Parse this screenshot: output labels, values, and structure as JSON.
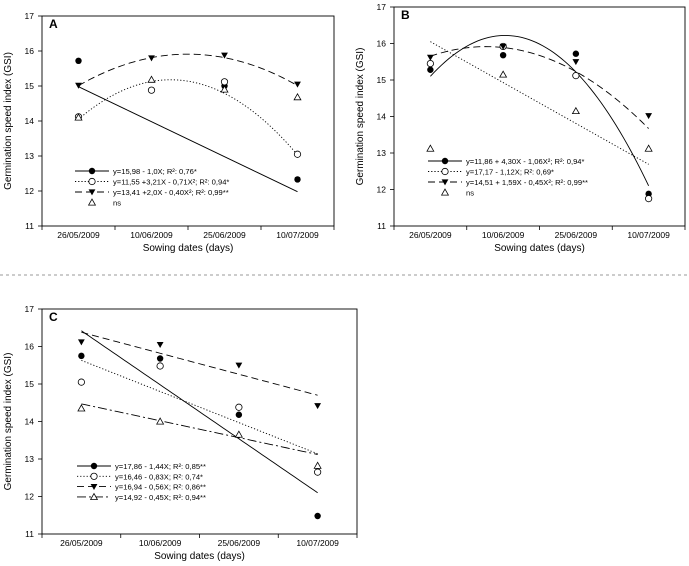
{
  "chart_data": [
    {
      "panel": "A",
      "type": "scatter",
      "ylabel": "Germination speed index (GSI)",
      "xlabel": "Sowing dates (days)",
      "categories": [
        "26/05/2009",
        "10/06/2009",
        "25/06/2009",
        "10/07/2009"
      ],
      "ylim": [
        11,
        17
      ],
      "yticks": [
        11,
        12,
        13,
        14,
        15,
        16,
        17
      ],
      "legend_position": "bottom-left",
      "series": [
        {
          "marker": "filled-circle",
          "dash": "solid",
          "values": [
            15.72,
            14.88,
            15.0,
            12.33
          ],
          "fit": [
            15.98,
            -1.0,
            0
          ],
          "legend": "y=15,98 - 1,0X; R²: 0,76*"
        },
        {
          "marker": "open-circle",
          "dash": "dotted",
          "values": [
            14.12,
            14.88,
            15.12,
            13.05
          ],
          "fit": [
            11.55,
            3.21,
            -0.71
          ],
          "legend": "y=11,55 +3,21X - 0,71X²; R²: 0,94*"
        },
        {
          "marker": "filled-triangle-down",
          "dash": "dashed",
          "values": [
            15.02,
            15.8,
            15.88,
            15.05
          ],
          "fit": [
            13.41,
            2.0,
            -0.4
          ],
          "legend": "y=13,41 +2,0X - 0,40X²; R²: 0,99**"
        },
        {
          "marker": "open-triangle-up",
          "dash": "none",
          "values": [
            14.1,
            15.18,
            14.9,
            14.68
          ],
          "fit": null,
          "legend": "ns"
        }
      ]
    },
    {
      "panel": "B",
      "type": "scatter",
      "ylabel": "Germination speed index (GSI)",
      "xlabel": "Sowing dates (days)",
      "categories": [
        "26/05/2009",
        "10/06/2009",
        "25/06/2009",
        "10/07/2009"
      ],
      "ylim": [
        11,
        17
      ],
      "yticks": [
        11,
        12,
        13,
        14,
        15,
        16,
        17
      ],
      "legend_position": "bottom-left",
      "series": [
        {
          "marker": "filled-circle",
          "dash": "solid",
          "values": [
            15.28,
            15.68,
            15.72,
            11.88
          ],
          "fit": [
            11.86,
            4.3,
            -1.06
          ],
          "legend": "y=11,86 + 4,30X - 1,06X²; R²: 0,94*"
        },
        {
          "marker": "open-circle",
          "dash": "dotted",
          "values": [
            15.45,
            15.92,
            15.12,
            11.75
          ],
          "fit": [
            17.17,
            -1.12,
            0
          ],
          "legend": "y=17,17 - 1,12X; R²: 0,69*"
        },
        {
          "marker": "filled-triangle-down",
          "dash": "dashed",
          "values": [
            15.62,
            15.92,
            15.5,
            14.02
          ],
          "fit": [
            14.51,
            1.59,
            -0.45
          ],
          "legend": "y=14,51 + 1,59X - 0,45X²; R²: 0,99**"
        },
        {
          "marker": "open-triangle-up",
          "dash": "none",
          "values": [
            13.12,
            15.15,
            14.15,
            13.12
          ],
          "fit": null,
          "legend": "ns"
        }
      ]
    },
    {
      "panel": "C",
      "type": "scatter",
      "ylabel": "Germination speed index (GSI)",
      "xlabel": "Sowing dates (days)",
      "categories": [
        "26/05/2009",
        "10/06/2009",
        "25/06/2009",
        "10/07/2009"
      ],
      "ylim": [
        11,
        17
      ],
      "yticks": [
        11,
        12,
        13,
        14,
        15,
        16,
        17
      ],
      "legend_position": "bottom-left",
      "series": [
        {
          "marker": "filled-circle",
          "dash": "solid",
          "values": [
            15.75,
            15.68,
            14.18,
            11.48
          ],
          "fit": [
            17.86,
            -1.44,
            0
          ],
          "legend": "y=17,86 - 1,44X; R²: 0,85**"
        },
        {
          "marker": "open-circle",
          "dash": "dotted",
          "values": [
            15.05,
            15.48,
            14.38,
            12.65
          ],
          "fit": [
            16.46,
            -0.83,
            0
          ],
          "legend": "y=16,46 - 0,83X; R²: 0,74*"
        },
        {
          "marker": "filled-triangle-down",
          "dash": "dashed",
          "values": [
            16.12,
            16.05,
            15.5,
            14.42
          ],
          "fit": [
            16.94,
            -0.56,
            0
          ],
          "legend": "y=16,94 - 0,56X; R²: 0,86**"
        },
        {
          "marker": "open-triangle-up",
          "dash": "dashdot",
          "values": [
            14.35,
            14.0,
            13.65,
            12.82
          ],
          "fit": [
            14.92,
            -0.45,
            0
          ],
          "legend": "y=14,92 - 0,45X; R²: 0,94**"
        }
      ]
    }
  ]
}
